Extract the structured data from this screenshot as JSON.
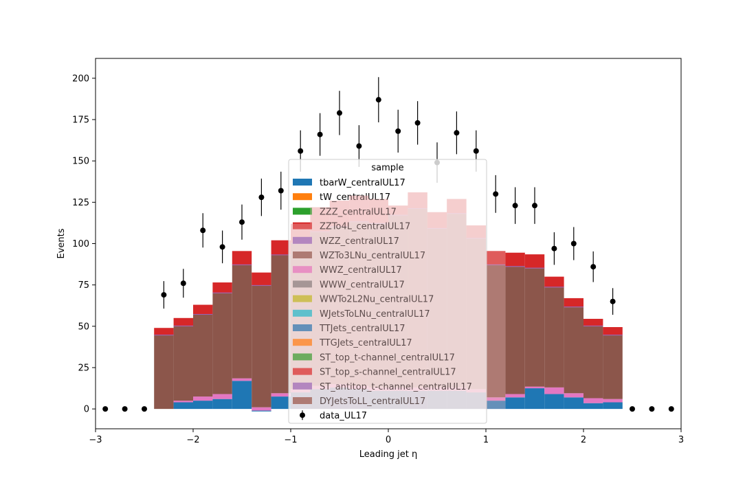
{
  "chart_data": {
    "type": "bar",
    "stacked": true,
    "xlabel": "Leading jet  η",
    "ylabel": "Events",
    "xlim": [
      -3,
      3
    ],
    "ylim": [
      -12,
      212
    ],
    "x_ticks": [
      "−3",
      "−2",
      "−1",
      "0",
      "1",
      "2",
      "3"
    ],
    "y_ticks": [
      "0",
      "25",
      "50",
      "75",
      "100",
      "125",
      "150",
      "175",
      "200"
    ],
    "grid": false,
    "legend": {
      "title": "sample",
      "placement": "center",
      "entries": [
        {
          "label": "tbarW_centralUL17",
          "color": "#1f77b4",
          "kind": "bar"
        },
        {
          "label": "tW_centralUL17",
          "color": "#ff7f0e",
          "kind": "bar"
        },
        {
          "label": "ZZZ_centralUL17",
          "color": "#2ca02c",
          "kind": "bar"
        },
        {
          "label": "ZZTo4L_centralUL17",
          "color": "#d62728",
          "kind": "bar"
        },
        {
          "label": "WZZ_centralUL17",
          "color": "#9467bd",
          "kind": "bar"
        },
        {
          "label": "WZTo3LNu_centralUL17",
          "color": "#8c564b",
          "kind": "bar"
        },
        {
          "label": "WWZ_centralUL17",
          "color": "#e377c2",
          "kind": "bar"
        },
        {
          "label": "WWW_centralUL17",
          "color": "#7f7f7f",
          "kind": "bar"
        },
        {
          "label": "WWTo2L2Nu_centralUL17",
          "color": "#bcbd22",
          "kind": "bar"
        },
        {
          "label": "WJetsToLNu_centralUL17",
          "color": "#17becf",
          "kind": "bar"
        },
        {
          "label": "TTJets_centralUL17",
          "color": "#1f77b4",
          "kind": "bar"
        },
        {
          "label": "TTGJets_centralUL17",
          "color": "#ff7f0e",
          "kind": "bar"
        },
        {
          "label": "ST_top_t-channel_centralUL17",
          "color": "#2ca02c",
          "kind": "bar"
        },
        {
          "label": "ST_top_s-channel_centralUL17",
          "color": "#d62728",
          "kind": "bar"
        },
        {
          "label": "ST_antitop_t-channel_centralUL17",
          "color": "#9467bd",
          "kind": "bar"
        },
        {
          "label": "DYJetsToLL_centralUL17",
          "color": "#8c564b",
          "kind": "bar"
        },
        {
          "label": "data_UL17",
          "color": "#000000",
          "kind": "errorbar"
        }
      ]
    },
    "bin_width": 0.2,
    "bins_low": [
      -2.4,
      -2.2,
      -2.0,
      -1.8,
      -1.6,
      -1.4,
      -1.2,
      -1.0,
      -0.8,
      -0.6,
      -0.4,
      -0.2,
      0.0,
      0.2,
      0.4,
      0.6,
      0.8,
      1.0,
      1.2,
      1.4,
      1.6,
      1.8,
      2.0,
      2.2
    ],
    "mc_base": [
      0,
      0,
      0,
      0,
      0,
      -1.5,
      0,
      0,
      0,
      0,
      0,
      0,
      0,
      0,
      0,
      0,
      0,
      0,
      0,
      0,
      0,
      0,
      0,
      0
    ],
    "mc_minor": [
      {
        "name": "TTJets_centralUL17",
        "color": "#1f77b4",
        "values": [
          0,
          4,
          5,
          6,
          17,
          0.5,
          7.5,
          10,
          12,
          13,
          12,
          11,
          11,
          11,
          11,
          11,
          10,
          5,
          7,
          12.5,
          9,
          7,
          3.5,
          4
        ]
      },
      {
        "name": "WWZ_centralUL17",
        "color": "#e377c2",
        "values": [
          0,
          1,
          2.5,
          3,
          1.5,
          2,
          2,
          2,
          2,
          2,
          2,
          2,
          2,
          2,
          2,
          2,
          2,
          2,
          2,
          1,
          4,
          2.5,
          3,
          2
        ]
      }
    ],
    "mc_dy_top": [
      44.5,
      50,
      57,
      70,
      87,
      74.5,
      93,
      100,
      107,
      110,
      113,
      112,
      117,
      121,
      109,
      118,
      103,
      87,
      86,
      85,
      73.5,
      61.5,
      50,
      44.5
    ],
    "mc_st_s": [
      4.5,
      5,
      6,
      6.5,
      8.5,
      8,
      9,
      12,
      15,
      16,
      16,
      15,
      6,
      10,
      10,
      9,
      8,
      8.5,
      8.5,
      8.5,
      6.5,
      5.5,
      4.5,
      5
    ],
    "mc_overlay_alpha": [
      0,
      0,
      0,
      0,
      0,
      0,
      0,
      0.55,
      0.6,
      0.65,
      0.65,
      0.6,
      0.6,
      0.65,
      0.6,
      0.6,
      0.6,
      0.55,
      0,
      0,
      0,
      0,
      0,
      0
    ],
    "data": {
      "name": "data_UL17",
      "x": [
        -2.9,
        -2.7,
        -2.5,
        -2.3,
        -2.1,
        -1.9,
        -1.7,
        -1.5,
        -1.3,
        -1.1,
        -0.9,
        -0.7,
        -0.5,
        -0.3,
        -0.1,
        0.1,
        0.3,
        0.5,
        0.7,
        0.9,
        1.1,
        1.3,
        1.5,
        1.7,
        1.9,
        2.1,
        2.3,
        2.5,
        2.7,
        2.9
      ],
      "y": [
        0,
        0,
        0,
        69,
        76,
        108,
        98,
        113,
        128,
        132,
        156,
        166,
        179,
        159,
        187,
        168,
        173,
        149,
        167,
        156,
        130,
        123,
        123,
        97,
        100,
        86,
        65,
        0,
        0,
        0
      ]
    }
  }
}
